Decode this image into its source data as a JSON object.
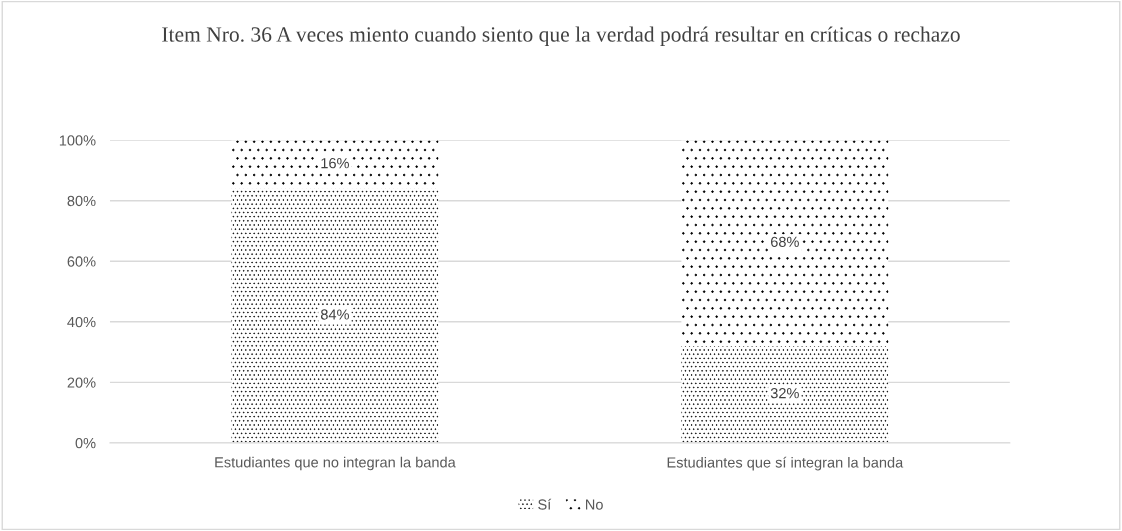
{
  "chart_data": {
    "type": "bar",
    "title": "Item Nro. 36 A veces miento cuando siento que la verdad podrá resultar en críticas o rechazo",
    "categories": [
      "Estudiantes que no integran la banda",
      "Estudiantes que sí integran la banda"
    ],
    "stacked": true,
    "series": [
      {
        "name": "Sí",
        "color": "#000000",
        "values": [
          84,
          32
        ],
        "value_labels": [
          "84%",
          "32%"
        ]
      },
      {
        "name": "No",
        "color": "#000000",
        "values": [
          16,
          68
        ],
        "value_labels": [
          "16%",
          "68%"
        ]
      }
    ],
    "ylim": [
      0,
      100
    ],
    "yticks": [
      {
        "value": 0,
        "label": "0%"
      },
      {
        "value": 20,
        "label": "20%"
      },
      {
        "value": 40,
        "label": "40%"
      },
      {
        "value": 60,
        "label": "60%"
      },
      {
        "value": 80,
        "label": "80%"
      },
      {
        "value": 100,
        "label": "100%"
      }
    ],
    "grid": "y",
    "legend": "bottom"
  }
}
